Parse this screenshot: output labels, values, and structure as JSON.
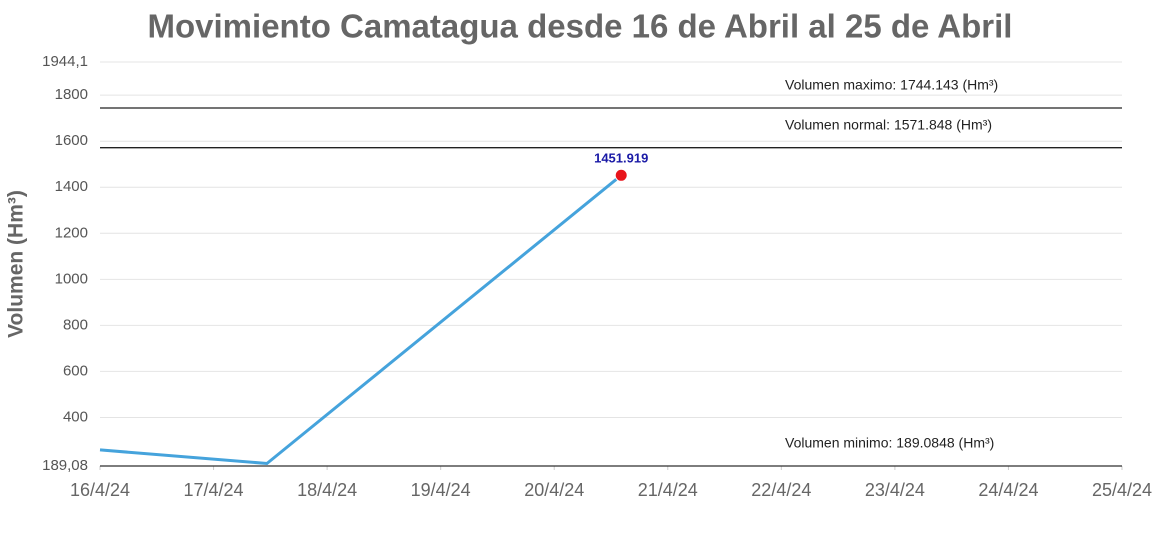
{
  "chart_data": {
    "type": "line",
    "title": "Movimiento Camatagua desde 16 de Abril al 25 de Abril",
    "y_label": "Volumen (Hm³)",
    "xlim": [
      16,
      25
    ],
    "xticks": [
      {
        "value": 16,
        "label": "16/4/24"
      },
      {
        "value": 17,
        "label": "17/4/24"
      },
      {
        "value": 18,
        "label": "18/4/24"
      },
      {
        "value": 19,
        "label": "19/4/24"
      },
      {
        "value": 20,
        "label": "20/4/24"
      },
      {
        "value": 21,
        "label": "21/4/24"
      },
      {
        "value": 22,
        "label": "22/4/24"
      },
      {
        "value": 23,
        "label": "23/4/24"
      },
      {
        "value": 24,
        "label": "24/4/24"
      },
      {
        "value": 25,
        "label": "25/4/24"
      }
    ],
    "ylim": [
      189.08,
      1944.1
    ],
    "yticks": [
      {
        "value": 189.08,
        "label": "189,08"
      },
      400,
      600,
      800,
      1000,
      1200,
      1400,
      1600,
      1800,
      {
        "value": 1944.1,
        "label": "1944,1"
      }
    ],
    "grid": true,
    "series": [
      {
        "x": [
          16,
          17.47,
          20.59
        ],
        "values": [
          259,
          200,
          1451.919
        ],
        "value_labels": [
          null,
          null,
          "1451.919"
        ],
        "color": "#45a3dc",
        "marker_color": "#e8141b",
        "label_color": "#1a1aa6"
      }
    ],
    "reference_lines": [
      {
        "label": "Volumen maximo: 1744.143 (Hm³)",
        "value": 1744.143
      },
      {
        "label": "Volumen normal: 1571.848 (Hm³)",
        "value": 1571.848
      },
      {
        "label": "Volumen minimo: 189.0848 (Hm³)",
        "value": 189.0848
      }
    ]
  }
}
